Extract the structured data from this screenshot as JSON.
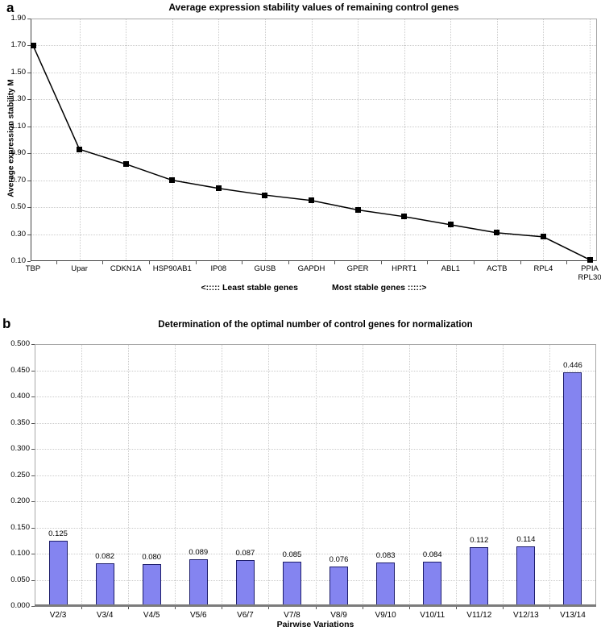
{
  "colors": {
    "grid": "#cbcbcb",
    "plot_border": "#a8a8a8",
    "dark_axis": "#444444",
    "line": "#000000",
    "marker": "#000000",
    "bar_fill": "#8484f0",
    "bar_border": "#1d1d6b",
    "bottom_axis_b": "#7b7b7b"
  },
  "chart_data": [
    {
      "panel_label": "a",
      "type": "line",
      "title": "Average expression stability values of remaining control genes",
      "ylabel": "Average expression stability M",
      "categories": [
        "TBP",
        "Upar",
        "CDKN1A",
        "HSP90AB1",
        "IP08",
        "GUSB",
        "GAPDH",
        "GPER",
        "HPRT1",
        "ABL1",
        "ACTB",
        "RPL4",
        "PPIA\nRPL30"
      ],
      "values": [
        1.7,
        0.93,
        0.82,
        0.7,
        0.64,
        0.59,
        0.55,
        0.48,
        0.43,
        0.37,
        0.31,
        0.28,
        0.11
      ],
      "ylim": [
        0.1,
        1.9
      ],
      "ytick_step": 0.2,
      "ytick_decimals": 2,
      "grid": true,
      "marker": "square",
      "legend": "none",
      "annotations": {
        "least": "<:::::  Least stable genes",
        "most": "Most stable genes  :::::>"
      }
    },
    {
      "panel_label": "b",
      "type": "bar",
      "title": "Determination of the optimal number of control genes for normalization",
      "xlabel": "Pairwise Variations",
      "categories": [
        "V2/3",
        "V3/4",
        "V4/5",
        "V5/6",
        "V6/7",
        "V7/8",
        "V8/9",
        "V9/10",
        "V10/11",
        "V11/12",
        "V12/13",
        "V13/14"
      ],
      "values": [
        0.125,
        0.082,
        0.08,
        0.089,
        0.087,
        0.085,
        0.076,
        0.083,
        0.084,
        0.112,
        0.114,
        0.446
      ],
      "ylim": [
        0.0,
        0.5
      ],
      "ytick_step": 0.05,
      "ytick_decimals": 3,
      "value_label_decimals": 3,
      "grid": true,
      "legend": "none"
    }
  ]
}
